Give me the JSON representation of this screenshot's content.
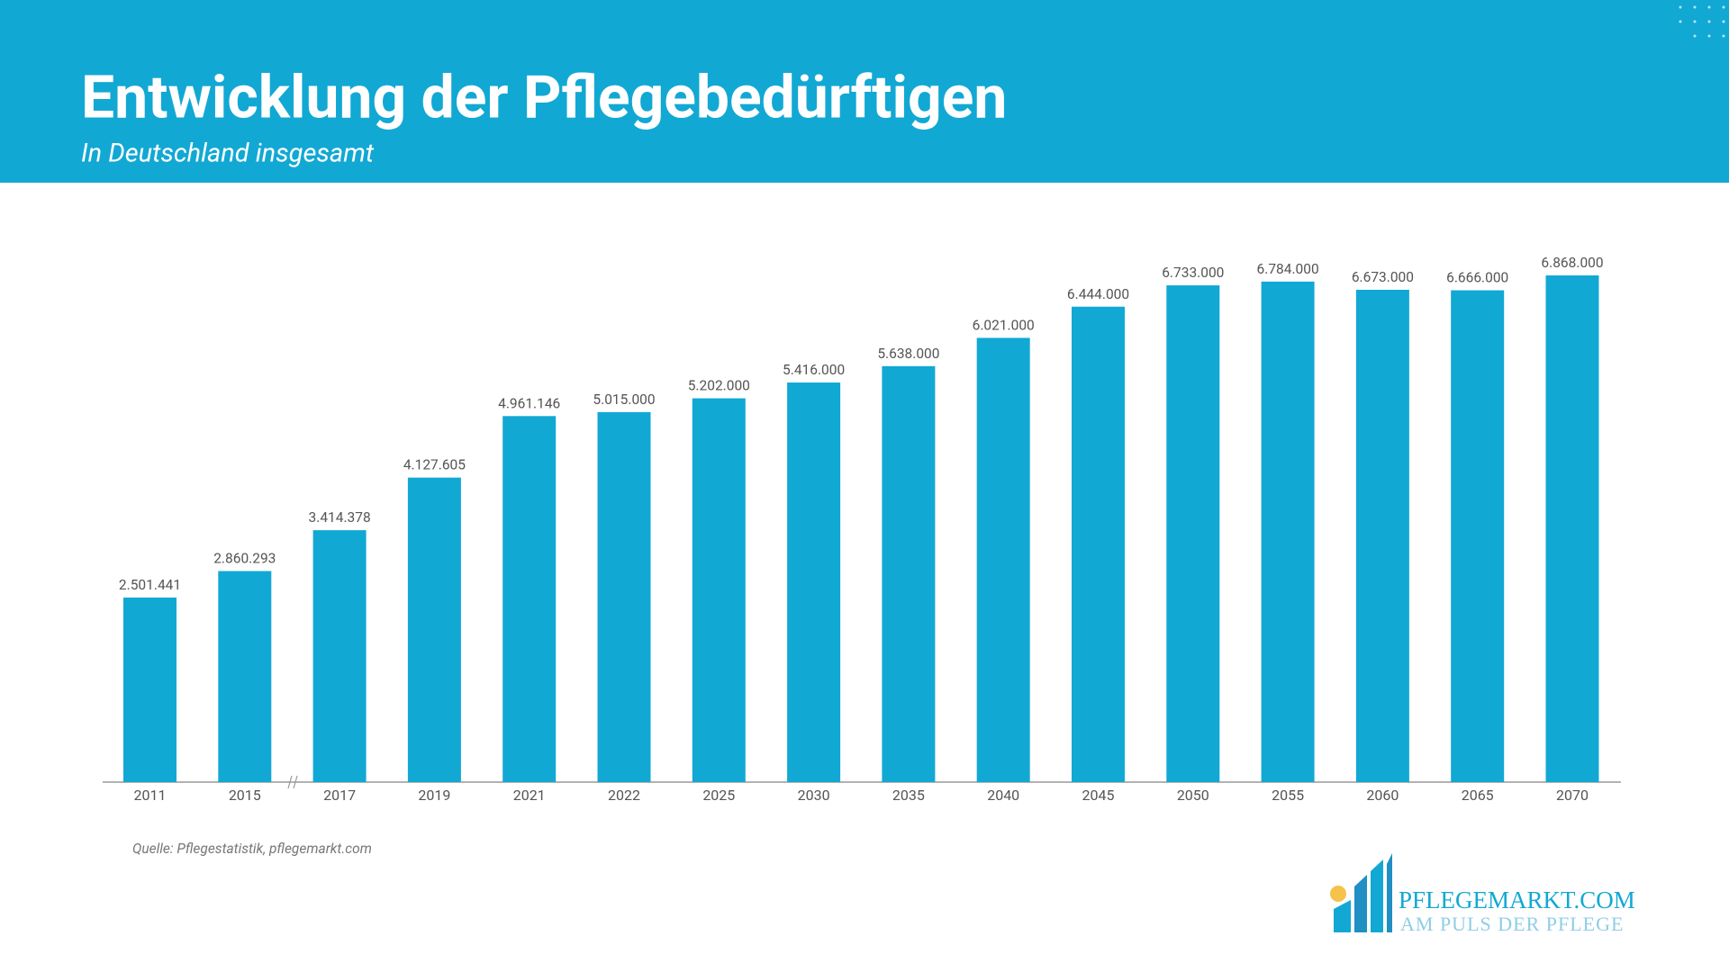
{
  "chart_data": {
    "type": "bar",
    "title": "Entwicklung der Pflegebedürftigen",
    "subtitle": "In Deutschland insgesamt",
    "categories": [
      "2011",
      "2015",
      "2017",
      "2019",
      "2021",
      "2022",
      "2025",
      "2030",
      "2035",
      "2040",
      "2045",
      "2050",
      "2055",
      "2060",
      "2065",
      "2070"
    ],
    "values": [
      2501441,
      2860293,
      3414378,
      4127605,
      4961146,
      5015000,
      5202000,
      5416000,
      5638000,
      6021000,
      6444000,
      6733000,
      6784000,
      6673000,
      6666000,
      6868000
    ],
    "value_labels": [
      "2.501.441",
      "2.860.293",
      "3.414.378",
      "4.127.605",
      "4.961.146",
      "5.015.000",
      "5.202.000",
      "5.416.000",
      "5.638.000",
      "6.021.000",
      "6.444.000",
      "6.733.000",
      "6.784.000",
      "6.673.000",
      "6.666.000",
      "6.868.000"
    ],
    "color": "#12a8d4",
    "source": "Quelle: Pflegestatistik, pflegemarkt.com"
  },
  "logo": {
    "name": "PFLEGEMARKT.COM",
    "tagline": "AM PULS DER PFLEGE"
  }
}
